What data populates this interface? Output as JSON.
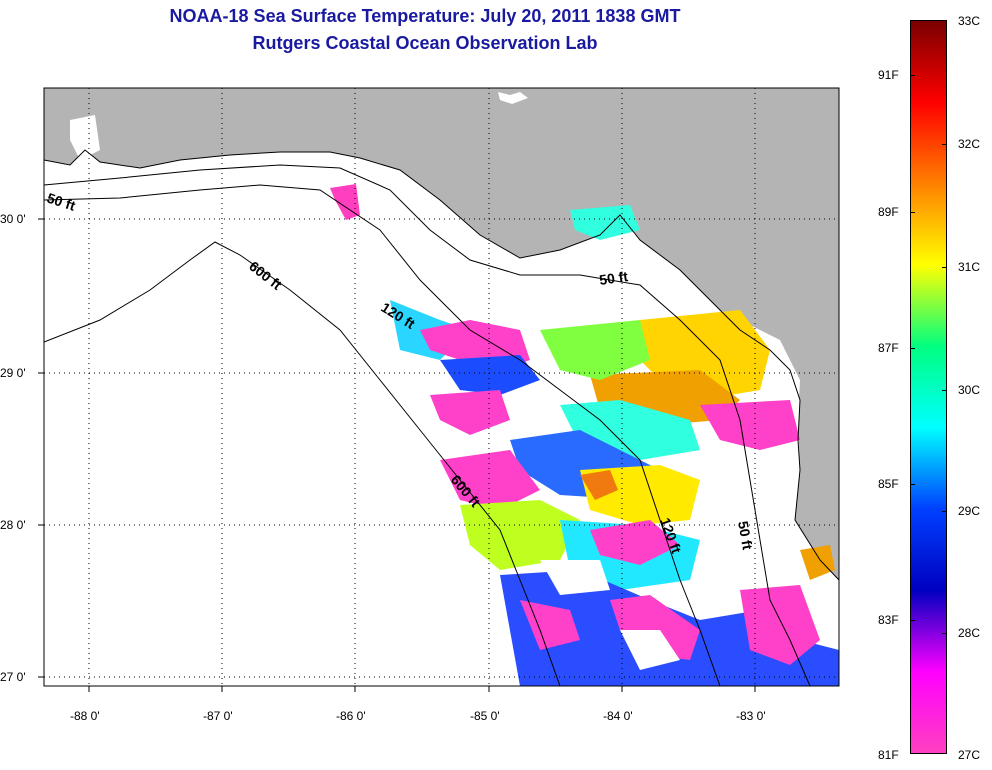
{
  "header": {
    "title": "NOAA-18 Sea Surface Temperature:  July 20, 2011 1838 GMT",
    "subtitle": "Rutgers Coastal Ocean Observation Lab"
  },
  "map": {
    "lon_ticks": [
      "-88 0'",
      "-87 0'",
      "-86 0'",
      "-85 0'",
      "-84 0'",
      "-83 0'"
    ],
    "lat_ticks": [
      "30 0'",
      "29 0'",
      "28 0'",
      "27 0'"
    ],
    "contour_labels": [
      "50 ft",
      "600 ft",
      "120 ft",
      "50 ft",
      "600 ft",
      "120 ft",
      "50 ft"
    ],
    "land_color": "#b4b4b4",
    "ocean_color": "#ffffff"
  },
  "colorbar": {
    "celsius_labels": [
      "33C",
      "32C",
      "31C",
      "30C",
      "29C",
      "28C",
      "27C"
    ],
    "fahrenheit_labels": [
      "91F",
      "89F",
      "87F",
      "85F",
      "83F",
      "81F"
    ],
    "gradient_colors": [
      "#7a0000",
      "#ff0000",
      "#ff8000",
      "#ffff00",
      "#00ff80",
      "#00ffff",
      "#0040ff",
      "#0000c0",
      "#ff00ff",
      "#ff40c0"
    ]
  }
}
